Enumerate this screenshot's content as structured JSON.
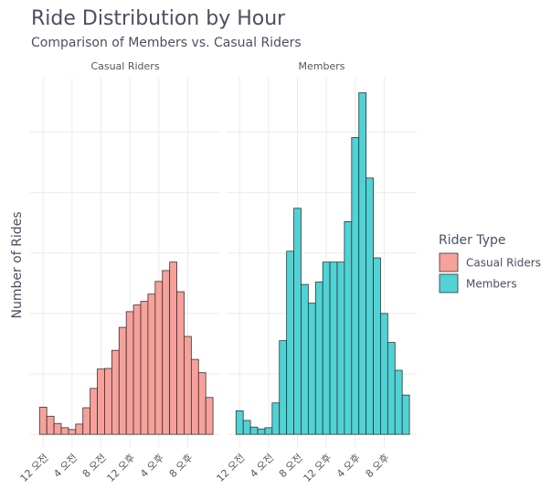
{
  "chart_data": {
    "type": "histogram",
    "title": "Ride Distribution by Hour",
    "subtitle": "Comparison of Members vs. Casual Riders",
    "y_label": "Number of Rides",
    "legend_title": "Rider Type",
    "bins": [
      -0.5,
      0.5,
      1.5,
      2.5,
      3.5,
      4.5,
      5.5,
      6.5,
      7.5,
      8.5,
      9.5,
      10.5,
      11.5,
      12.5,
      13.5,
      14.5,
      15.5,
      16.5,
      17.5,
      18.5,
      19.5,
      20.5,
      21.5,
      22.5,
      23.5
    ],
    "xlim": [
      -1.8,
      24.5
    ],
    "xticks": [
      {
        "value": 0,
        "label": "12 오전"
      },
      {
        "value": 4,
        "label": "4 오전"
      },
      {
        "value": 8,
        "label": "8 오전"
      },
      {
        "value": 12,
        "label": "12 오후"
      },
      {
        "value": 16,
        "label": "4 오후"
      },
      {
        "value": 20,
        "label": "8 오후"
      }
    ],
    "ylim": [
      -21,
      590
    ],
    "yticks": [
      0,
      100,
      200,
      300,
      400,
      500
    ],
    "ytick_labels": false,
    "grid": true,
    "series": [
      {
        "name": "Casual Riders",
        "color": "#F8A19B",
        "values": [
          45,
          30,
          18,
          11,
          8,
          17,
          44,
          76,
          108,
          109,
          139,
          177,
          203,
          214,
          220,
          232,
          253,
          271,
          285,
          236,
          162,
          124,
          102,
          61
        ]
      },
      {
        "name": "Members",
        "color": "#4FD3D5",
        "values": [
          39,
          23,
          12,
          9,
          11,
          52,
          155,
          303,
          374,
          248,
          217,
          252,
          285,
          285,
          285,
          352,
          491,
          565,
          424,
          292,
          200,
          152,
          106,
          65
        ]
      }
    ]
  }
}
